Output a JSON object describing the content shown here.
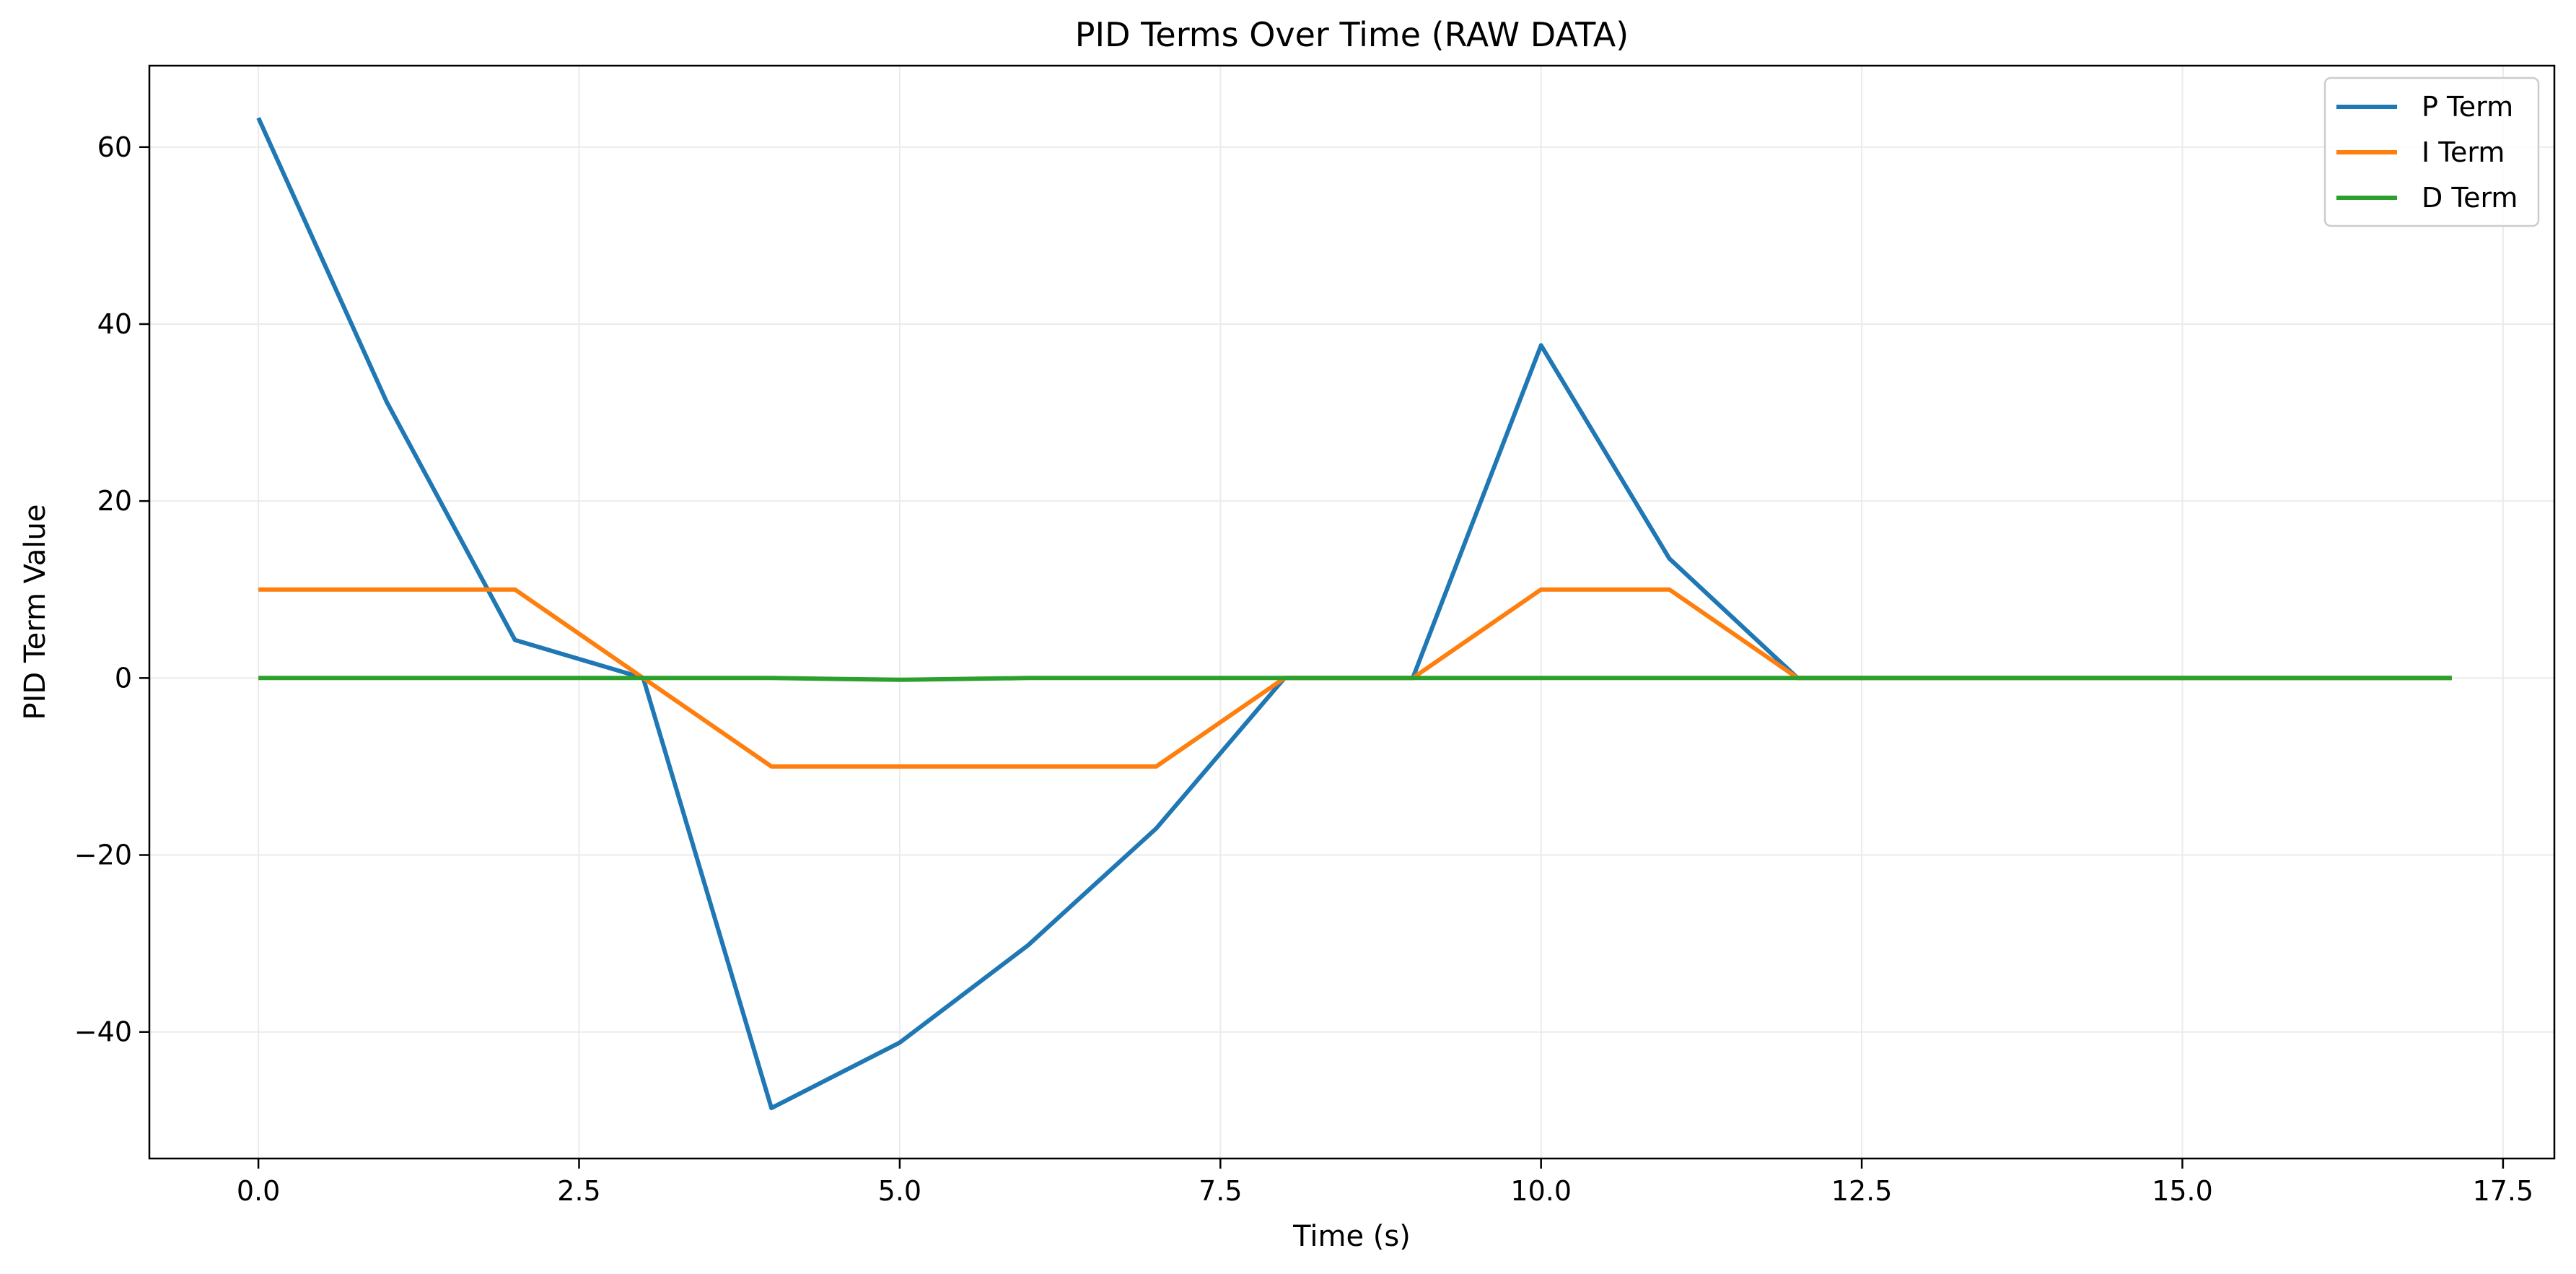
{
  "chart_data": {
    "type": "line",
    "title": "PID Terms Over Time (RAW DATA)",
    "xlabel": "Time (s)",
    "ylabel": "PID Term Value",
    "xlim": [
      -0.85,
      17.9
    ],
    "ylim": [
      -54.3,
      69.2
    ],
    "x_ticks": [
      0.0,
      2.5,
      5.0,
      7.5,
      10.0,
      12.5,
      15.0,
      17.5
    ],
    "x_tick_labels": [
      "0.0",
      "2.5",
      "5.0",
      "7.5",
      "10.0",
      "12.5",
      "15.0",
      "17.5"
    ],
    "y_ticks": [
      -40,
      -20,
      0,
      20,
      40,
      60
    ],
    "y_tick_labels": [
      "−40",
      "−20",
      "0",
      "20",
      "40",
      "60"
    ],
    "grid": true,
    "legend_position": "top-right",
    "x": [
      0,
      1,
      2,
      3,
      4,
      5,
      6,
      7,
      8,
      9,
      10,
      11,
      12,
      13,
      14,
      15,
      16,
      17.1
    ],
    "series": [
      {
        "name": "P Term",
        "color": "#1f77b4",
        "values": [
          63.3,
          31.2,
          4.3,
          0.0,
          -48.6,
          -41.2,
          -30.2,
          -17.0,
          0.0,
          0.0,
          37.6,
          13.5,
          0.0,
          0.0,
          0.0,
          0.0,
          0.0,
          0.0
        ]
      },
      {
        "name": "I Term",
        "color": "#ff7f0e",
        "values": [
          10.0,
          10.0,
          10.0,
          0.0,
          -10.0,
          -10.0,
          -10.0,
          -10.0,
          0.0,
          0.0,
          10.0,
          10.0,
          0.0,
          0.0,
          0.0,
          0.0,
          0.0,
          0.0
        ]
      },
      {
        "name": "D Term",
        "color": "#2ca02c",
        "values": [
          0.0,
          0.0,
          0.0,
          0.0,
          0.0,
          -0.2,
          0.0,
          0.0,
          0.0,
          0.0,
          0.0,
          0.0,
          0.0,
          0.0,
          0.0,
          0.0,
          0.0,
          0.0
        ]
      }
    ]
  }
}
